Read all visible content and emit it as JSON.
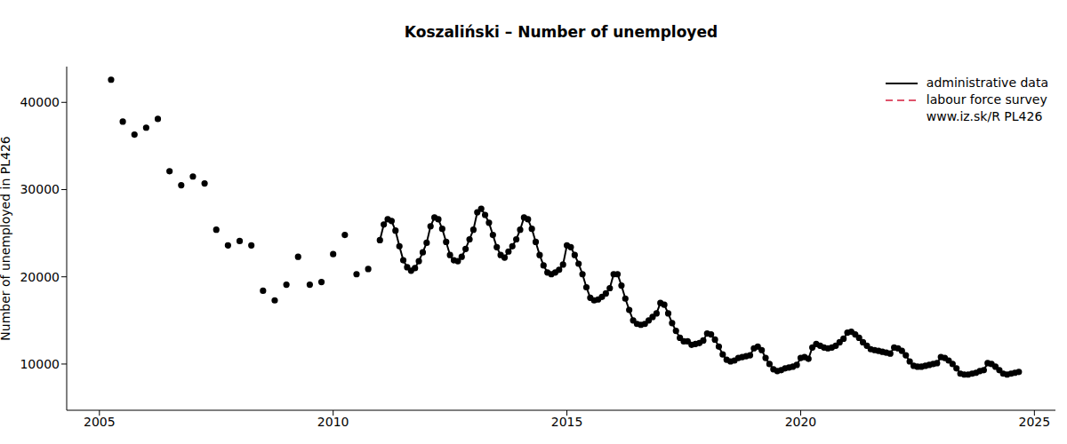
{
  "chart_data": {
    "type": "line",
    "title": "Koszaliński – Number of unemployed",
    "y_label": "Number of unemployed in PL426",
    "annotation": "www.iz.sk/R PL426",
    "legend": "top-right",
    "grid": false,
    "xlim": [
      2004.3,
      2025.45
    ],
    "xticks": [
      2005,
      2010,
      2015,
      2020,
      2025
    ],
    "ylim": [
      4700,
      44100
    ],
    "yticks": [
      10000,
      20000,
      30000,
      40000
    ],
    "series": [
      {
        "name": "administrative data",
        "color": "#000000",
        "line_style": "solid",
        "marker": "circle",
        "x": [
          2005.25,
          2005.375,
          2005.5,
          2005.625,
          2005.75,
          2005.875,
          2006,
          2006.125,
          2006.25,
          2006.375,
          2006.5,
          2006.625,
          2006.75,
          2006.875,
          2007,
          2007.125,
          2007.25,
          2007.375,
          2007.5,
          2007.625,
          2007.75,
          2007.875,
          2008,
          2008.125,
          2008.25,
          2008.375,
          2008.5,
          2008.625,
          2008.75,
          2008.875,
          2009,
          2009.125,
          2009.25,
          2009.375,
          2009.5,
          2009.625,
          2009.75,
          2009.875,
          2010,
          2010.125,
          2010.25,
          2010.375,
          2010.5,
          2010.625,
          2010.75,
          2010.875,
          2011,
          2011.083,
          2011.167,
          2011.25,
          2011.333,
          2011.417,
          2011.5,
          2011.583,
          2011.667,
          2011.75,
          2011.833,
          2011.917,
          2012,
          2012.083,
          2012.167,
          2012.25,
          2012.333,
          2012.417,
          2012.5,
          2012.583,
          2012.667,
          2012.75,
          2012.833,
          2012.917,
          2013,
          2013.083,
          2013.167,
          2013.25,
          2013.333,
          2013.417,
          2013.5,
          2013.583,
          2013.667,
          2013.75,
          2013.833,
          2013.917,
          2014,
          2014.083,
          2014.167,
          2014.25,
          2014.333,
          2014.417,
          2014.5,
          2014.583,
          2014.667,
          2014.75,
          2014.833,
          2014.917,
          2015,
          2015.083,
          2015.167,
          2015.25,
          2015.333,
          2015.417,
          2015.5,
          2015.583,
          2015.667,
          2015.75,
          2015.833,
          2015.917,
          2016,
          2016.083,
          2016.167,
          2016.25,
          2016.333,
          2016.417,
          2016.5,
          2016.583,
          2016.667,
          2016.75,
          2016.833,
          2016.917,
          2017,
          2017.083,
          2017.167,
          2017.25,
          2017.333,
          2017.417,
          2017.5,
          2017.583,
          2017.667,
          2017.75,
          2017.833,
          2017.917,
          2018,
          2018.083,
          2018.167,
          2018.25,
          2018.333,
          2018.417,
          2018.5,
          2018.583,
          2018.667,
          2018.75,
          2018.833,
          2018.917,
          2019,
          2019.083,
          2019.167,
          2019.25,
          2019.333,
          2019.417,
          2019.5,
          2019.583,
          2019.667,
          2019.75,
          2019.833,
          2019.917,
          2020,
          2020.083,
          2020.167,
          2020.25,
          2020.333,
          2020.417,
          2020.5,
          2020.583,
          2020.667,
          2020.75,
          2020.833,
          2020.917,
          2021,
          2021.083,
          2021.167,
          2021.25,
          2021.333,
          2021.417,
          2021.5,
          2021.583,
          2021.667,
          2021.75,
          2021.833,
          2021.917,
          2022,
          2022.083,
          2022.167,
          2022.25,
          2022.333,
          2022.417,
          2022.5,
          2022.583,
          2022.667,
          2022.75,
          2022.833,
          2022.917,
          2023,
          2023.083,
          2023.167,
          2023.25,
          2023.333,
          2023.417,
          2023.5,
          2023.583,
          2023.667,
          2023.75,
          2023.833,
          2023.917,
          2024,
          2024.083,
          2024.167,
          2024.25,
          2024.333,
          2024.417,
          2024.5,
          2024.583,
          2024.667
        ],
        "values": [
          42600,
          null,
          37800,
          null,
          36300,
          null,
          37100,
          null,
          38100,
          null,
          32100,
          null,
          30500,
          null,
          31500,
          null,
          30700,
          null,
          25400,
          null,
          23600,
          null,
          24100,
          null,
          23600,
          null,
          18400,
          null,
          17300,
          null,
          19100,
          null,
          22300,
          null,
          19100,
          null,
          19400,
          null,
          22600,
          null,
          24800,
          null,
          20300,
          null,
          20900,
          null,
          24200,
          26000,
          26600,
          26400,
          25300,
          23500,
          21900,
          21100,
          20700,
          21000,
          21800,
          22800,
          23900,
          25800,
          26800,
          26600,
          25500,
          24000,
          22500,
          21900,
          21800,
          22300,
          23200,
          24300,
          25400,
          27400,
          27800,
          27100,
          26200,
          24800,
          23400,
          22500,
          22200,
          22900,
          23500,
          24300,
          25400,
          26800,
          26600,
          25500,
          24000,
          22500,
          21300,
          20500,
          20300,
          20500,
          20800,
          21400,
          23600,
          23400,
          22500,
          21500,
          20300,
          18800,
          17600,
          17300,
          17400,
          17700,
          18100,
          18700,
          20300,
          20300,
          19000,
          17500,
          16200,
          15000,
          14600,
          14500,
          14600,
          15000,
          15400,
          15800,
          17000,
          16800,
          15800,
          14700,
          13800,
          13000,
          12600,
          12600,
          12200,
          12300,
          12400,
          12700,
          13500,
          13400,
          12800,
          12000,
          11100,
          10500,
          10300,
          10400,
          10700,
          10800,
          10900,
          11000,
          11800,
          12000,
          11600,
          10700,
          10000,
          9400,
          9200,
          9300,
          9500,
          9600,
          9700,
          9900,
          10700,
          10800,
          10600,
          11900,
          12300,
          12100,
          11900,
          11800,
          11900,
          12100,
          12500,
          12900,
          13600,
          13700,
          13400,
          13000,
          12500,
          12100,
          11700,
          11600,
          11500,
          11400,
          11300,
          11200,
          11900,
          11800,
          11500,
          11000,
          10300,
          9800,
          9700,
          9700,
          9800,
          9900,
          10000,
          10100,
          10800,
          10700,
          10400,
          10000,
          9500,
          8900,
          8800,
          8800,
          8900,
          9000,
          9200,
          9300,
          10100,
          10000,
          9700,
          9300,
          8900,
          8800,
          8900,
          9000,
          9100
        ]
      },
      {
        "name": "labour force survey",
        "color": "#df536b",
        "line_style": "dashed",
        "marker": "none",
        "x": [],
        "values": []
      }
    ]
  }
}
